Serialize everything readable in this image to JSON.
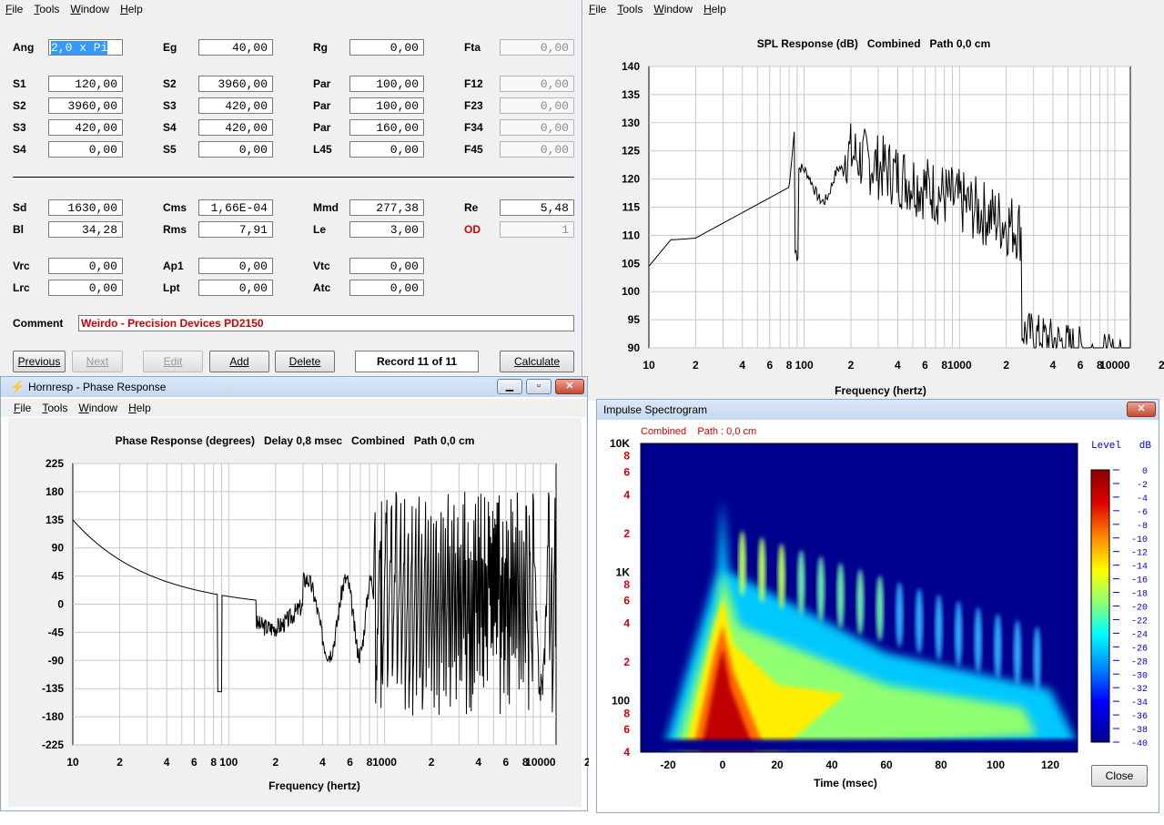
{
  "menu": {
    "file": "File",
    "tools": "Tools",
    "window": "Window",
    "help": "Help"
  },
  "input": {
    "rows1": [
      [
        {
          "l": "Ang",
          "v": "2,0 x Pi"
        },
        {
          "l": "Eg",
          "v": "40,00"
        },
        {
          "l": "Rg",
          "v": "0,00"
        },
        {
          "l": "Fta",
          "v": "0,00"
        }
      ],
      [
        {
          "l": "S1",
          "v": "120,00"
        },
        {
          "l": "S2",
          "v": "3960,00"
        },
        {
          "l": "Par",
          "v": "100,00"
        },
        {
          "l": "F12",
          "v": "0,00"
        }
      ],
      [
        {
          "l": "S2",
          "v": "3960,00"
        },
        {
          "l": "S3",
          "v": "420,00"
        },
        {
          "l": "Par",
          "v": "100,00"
        },
        {
          "l": "F23",
          "v": "0,00"
        }
      ],
      [
        {
          "l": "S3",
          "v": "420,00"
        },
        {
          "l": "S4",
          "v": "420,00"
        },
        {
          "l": "Par",
          "v": "160,00"
        },
        {
          "l": "F34",
          "v": "0,00"
        }
      ],
      [
        {
          "l": "S4",
          "v": "0,00"
        },
        {
          "l": "S5",
          "v": "0,00"
        },
        {
          "l": "L45",
          "v": "0,00"
        },
        {
          "l": "F45",
          "v": "0,00"
        }
      ]
    ],
    "rows2": [
      [
        {
          "l": "Sd",
          "v": "1630,00"
        },
        {
          "l": "Cms",
          "v": "1,66E-04"
        },
        {
          "l": "Mmd",
          "v": "277,38"
        },
        {
          "l": "Re",
          "v": "5,48"
        }
      ],
      [
        {
          "l": "Bl",
          "v": "34,28"
        },
        {
          "l": "Rms",
          "v": "7,91"
        },
        {
          "l": "Le",
          "v": "3,00"
        },
        {
          "l": "OD",
          "v": "1"
        }
      ],
      [
        {
          "l": "Vrc",
          "v": "0,00"
        },
        {
          "l": "Ap1",
          "v": "0,00"
        },
        {
          "l": "Vtc",
          "v": "0,00"
        }
      ],
      [
        {
          "l": "Lrc",
          "v": "0,00"
        },
        {
          "l": "Lpt",
          "v": "0,00"
        },
        {
          "l": "Atc",
          "v": "0,00"
        }
      ]
    ],
    "comment_label": "Comment",
    "comment_value": "Weirdo - Precision Devices PD2150",
    "buttons": {
      "previous": "Previous",
      "next": "Next",
      "edit": "Edit",
      "add": "Add",
      "delete": "Delete",
      "calculate": "Calculate"
    },
    "record": "Record 11 of 11",
    "colors": {
      "od_label": "#d40000",
      "comment_text": "#cc0000",
      "selection": "#3399ff"
    }
  },
  "spl": {
    "title": "SPL Response (dB)   Combined   Path 0,0 cm",
    "xlabel": "Frequency (hertz)",
    "y_ticks": [
      "140",
      "135",
      "130",
      "125",
      "120",
      "115",
      "110",
      "105",
      "100",
      "95",
      "90"
    ],
    "x_ticks": [
      "10",
      "2",
      "4",
      "6",
      "8",
      "100",
      "2",
      "4",
      "6",
      "8",
      "1000",
      "2",
      "4",
      "6",
      "8",
      "10000",
      "2"
    ]
  },
  "phase": {
    "window_title": "Hornresp - Phase Response",
    "title": "Phase Response (degrees)   Delay 0,8 msec   Combined   Path 0,0 cm",
    "xlabel": "Frequency (hertz)",
    "y_ticks": [
      "225",
      "180",
      "135",
      "90",
      "45",
      "0",
      "-45",
      "-90",
      "-135",
      "-180",
      "-225"
    ],
    "x_ticks": [
      "10",
      "2",
      "4",
      "6",
      "8",
      "100",
      "2",
      "4",
      "6",
      "8",
      "1000",
      "2",
      "4",
      "6",
      "8",
      "10000",
      "2"
    ]
  },
  "spectrogram": {
    "window_title": "Impulse Spectrogram",
    "subtitle": "Combined    Path : 0,0 cm",
    "y_ticks": [
      "10K",
      "8",
      "6",
      "4",
      "2",
      "1K",
      "8",
      "6",
      "4",
      "2",
      "100",
      "8",
      "6",
      "4"
    ],
    "x_ticks": [
      "-20",
      "0",
      "20",
      "40",
      "60",
      "80",
      "100",
      "120"
    ],
    "xlabel": "Time (msec)",
    "legend_title": "Level   dB",
    "legend_ticks": [
      "0",
      "-2",
      "-4",
      "-6",
      "-8",
      "-10",
      "-12",
      "-14",
      "-16",
      "-18",
      "-20",
      "-22",
      "-24",
      "-26",
      "-28",
      "-30",
      "-32",
      "-34",
      "-36",
      "-38",
      "-40"
    ],
    "close": "Close",
    "colors": {
      "background": "#00008f",
      "red": "#c00000",
      "tick_red": "#cc0000",
      "legend_blue": "#0000cc"
    }
  }
}
